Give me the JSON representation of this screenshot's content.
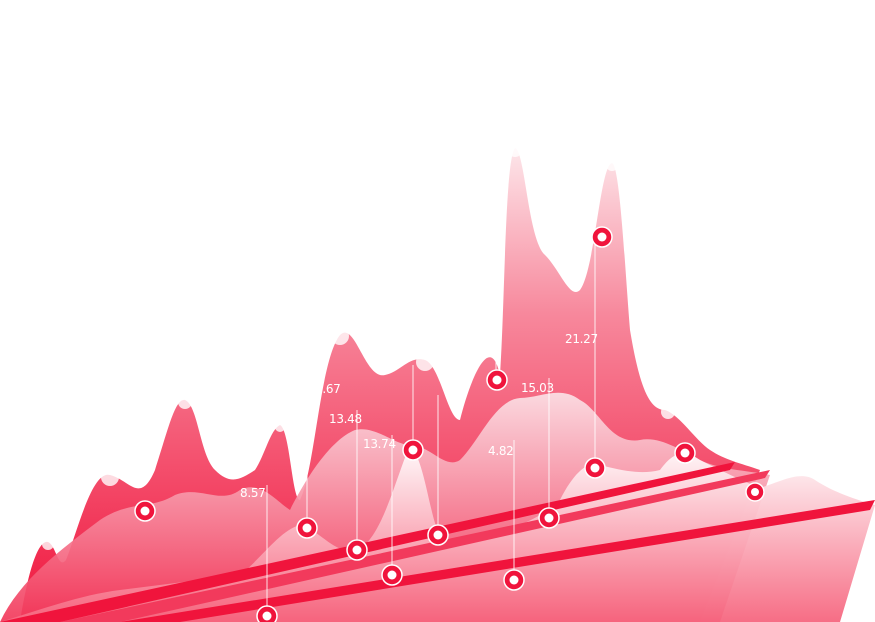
{
  "chart_data": {
    "type": "area",
    "title": "",
    "xlabel": "",
    "ylabel": "",
    "grid": false,
    "legend": "none",
    "colors": {
      "fill": "#f0143c",
      "highlight": "#ffffff"
    },
    "labels": [
      "8.57",
      "5.67",
      "13.48",
      "13.74",
      "4.82",
      "15.03",
      "21.27"
    ],
    "series": [
      {
        "peaks": [
          25,
          62,
          51,
          20,
          0,
          0,
          0
        ]
      },
      {
        "peaks": [
          8,
          5,
          40,
          68,
          20,
          0,
          0
        ]
      },
      {
        "peaks": [
          0,
          10,
          34,
          50,
          30,
          80,
          20
        ]
      },
      {
        "peaks": [
          0,
          5,
          12,
          24,
          28,
          30,
          21
        ]
      },
      {
        "peaks": [
          0,
          4,
          12,
          18,
          22,
          17,
          10
        ]
      },
      {
        "peaks": [
          0,
          2,
          8,
          12,
          16,
          18,
          12
        ]
      }
    ]
  }
}
